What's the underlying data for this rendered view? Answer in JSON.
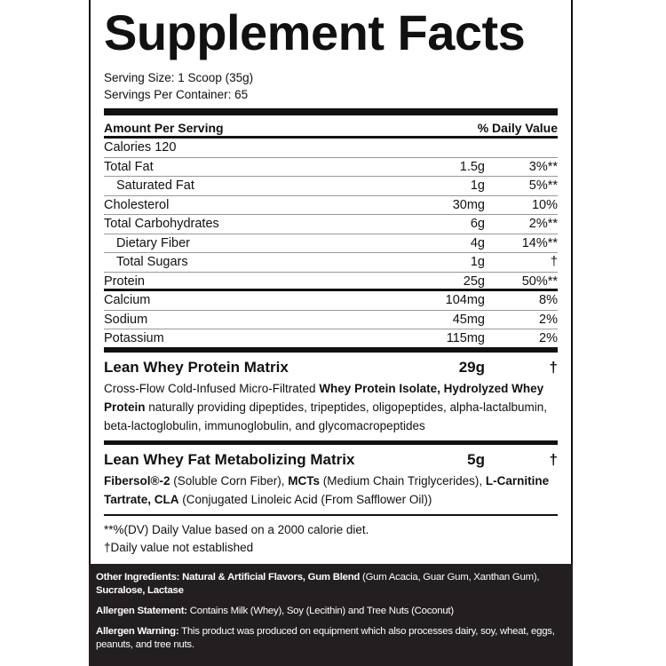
{
  "title": "Supplement Facts",
  "serving_size": "Serving Size: 1 Scoop (35g)",
  "servings_per_container": "Servings Per Container: 65",
  "header": {
    "amount": "Amount Per Serving",
    "dv": "% Daily Value"
  },
  "calories": "Calories 120",
  "nutrients": [
    {
      "name": "Total Fat",
      "amount": "1.5g",
      "dv": "3%**",
      "sub": false
    },
    {
      "name": "Saturated Fat",
      "amount": "1g",
      "dv": "5%**",
      "sub": true
    },
    {
      "name": "Cholesterol",
      "amount": "30mg",
      "dv": "10%",
      "sub": false
    },
    {
      "name": "Total Carbohydrates",
      "amount": "6g",
      "dv": "2%**",
      "sub": false
    },
    {
      "name": "Dietary Fiber",
      "amount": "4g",
      "dv": "14%**",
      "sub": true
    },
    {
      "name": "Total Sugars",
      "amount": "1g",
      "dv": "†",
      "sub": true
    },
    {
      "name": "Protein",
      "amount": "25g",
      "dv": "50%**",
      "sub": false
    },
    {
      "name": "Calcium",
      "amount": "104mg",
      "dv": "8%",
      "sub": false
    },
    {
      "name": "Sodium",
      "amount": "45mg",
      "dv": "2%",
      "sub": false
    },
    {
      "name": "Potassium",
      "amount": "115mg",
      "dv": "2%",
      "sub": false
    }
  ],
  "matrices": [
    {
      "name": "Lean Whey Protein Matrix",
      "amount": "29g",
      "dv": "†",
      "description": [
        {
          "text": "Cross-Flow Cold-Infused Micro-Filtrated ",
          "bold": false
        },
        {
          "text": "Whey Protein Isolate, Hydrolyzed Whey Protein",
          "bold": true
        },
        {
          "text": " naturally providing dipeptides, tripeptides, oligopeptides, alpha-lactalbumin, beta-lactoglobulin, immunoglobulin, and glycomacropeptides",
          "bold": false
        }
      ]
    },
    {
      "name": "Lean Whey Fat Metabolizing Matrix",
      "amount": "5g",
      "dv": "†",
      "description": [
        {
          "text": "Fibersol®-2",
          "bold": true
        },
        {
          "text": " (Soluble Corn Fiber), ",
          "bold": false
        },
        {
          "text": "MCTs",
          "bold": true
        },
        {
          "text": " (Medium Chain Triglycerides), ",
          "bold": false
        },
        {
          "text": "L-Carnitine Tartrate, CLA",
          "bold": true
        },
        {
          "text": " (Conjugated Linoleic Acid (From Safflower Oil))",
          "bold": false
        }
      ]
    }
  ],
  "footnotes": [
    "**%(DV) Daily Value based on a 2000 calorie diet.",
    "†Daily value not established"
  ],
  "bottom": [
    [
      {
        "text": "Other Ingredients: Natural & Artificial Flavors, Gum Blend",
        "bold": true
      },
      {
        "text": " (Gum Acacia, Guar Gum, Xanthan Gum), ",
        "bold": false
      },
      {
        "text": "Sucralose, Lactase",
        "bold": true
      }
    ],
    [
      {
        "text": "Allergen Statement:",
        "bold": true
      },
      {
        "text": " Contains Milk (Whey), Soy (Lecithin) and Tree Nuts (Coconut)",
        "bold": false
      }
    ],
    [
      {
        "text": "Allergen Warning:",
        "bold": true
      },
      {
        "text": " This product was produced on equipment which also processes dairy, soy, wheat, eggs, peanuts, and tree nuts.",
        "bold": false
      }
    ]
  ]
}
